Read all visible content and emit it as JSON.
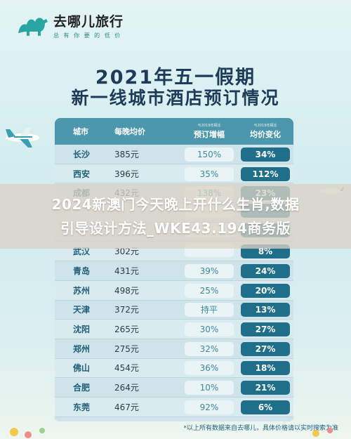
{
  "brand": {
    "name": "去哪儿旅行",
    "slogan": "总 有 你 要 的 低 价"
  },
  "title": {
    "line1": "2021年五一假期",
    "line2": "新一线城市酒店预订情况"
  },
  "table": {
    "headers": {
      "city": "城市",
      "price": "每晚均价",
      "growth_note": "与2019年相比",
      "growth": "预订增幅",
      "change_note": "与2019年相比",
      "change": "均价变化"
    },
    "rows": [
      {
        "city": "长沙",
        "price": "385元",
        "growth": "150%",
        "change": "34%"
      },
      {
        "city": "西安",
        "price": "396元",
        "growth": "35%",
        "change": "112%"
      },
      {
        "city": "成都",
        "price": "432元",
        "growth": "138%",
        "change": "23%"
      },
      {
        "city": "",
        "price": "",
        "growth": "",
        "change": ""
      },
      {
        "city": "",
        "price": "",
        "growth": "",
        "change": ""
      },
      {
        "city": "武汉",
        "price": "302元",
        "growth": "",
        "change": "8%"
      },
      {
        "city": "青岛",
        "price": "431元",
        "growth": "39%",
        "change": "24%"
      },
      {
        "city": "苏州",
        "price": "498元",
        "growth": "25%",
        "change": "20%"
      },
      {
        "city": "天津",
        "price": "372元",
        "growth": "持平",
        "change": "13%"
      },
      {
        "city": "沈阳",
        "price": "265元",
        "growth": "30%",
        "change": "27%"
      },
      {
        "city": "郑州",
        "price": "275元",
        "growth": "32%",
        "change": "27%"
      },
      {
        "city": "佛山",
        "price": "454元",
        "growth": "36%",
        "change": "18%"
      },
      {
        "city": "合肥",
        "price": "264元",
        "growth": "10%",
        "change": "21%"
      },
      {
        "city": "东莞",
        "price": "467元",
        "growth": "92%",
        "change": "6%"
      }
    ]
  },
  "footnote": "*以上所有数据来自去哪儿，具体价格请以实时搜索为准",
  "banner": {
    "line1": "2024新澳门今天晚上开什么生肖,数据",
    "line2": "引导设计方法_WKE43.194商务版"
  },
  "colors": {
    "header_bg": "#4c97ad",
    "change_pill": "#1f6f8b",
    "title_text": "#1e3c5a"
  }
}
